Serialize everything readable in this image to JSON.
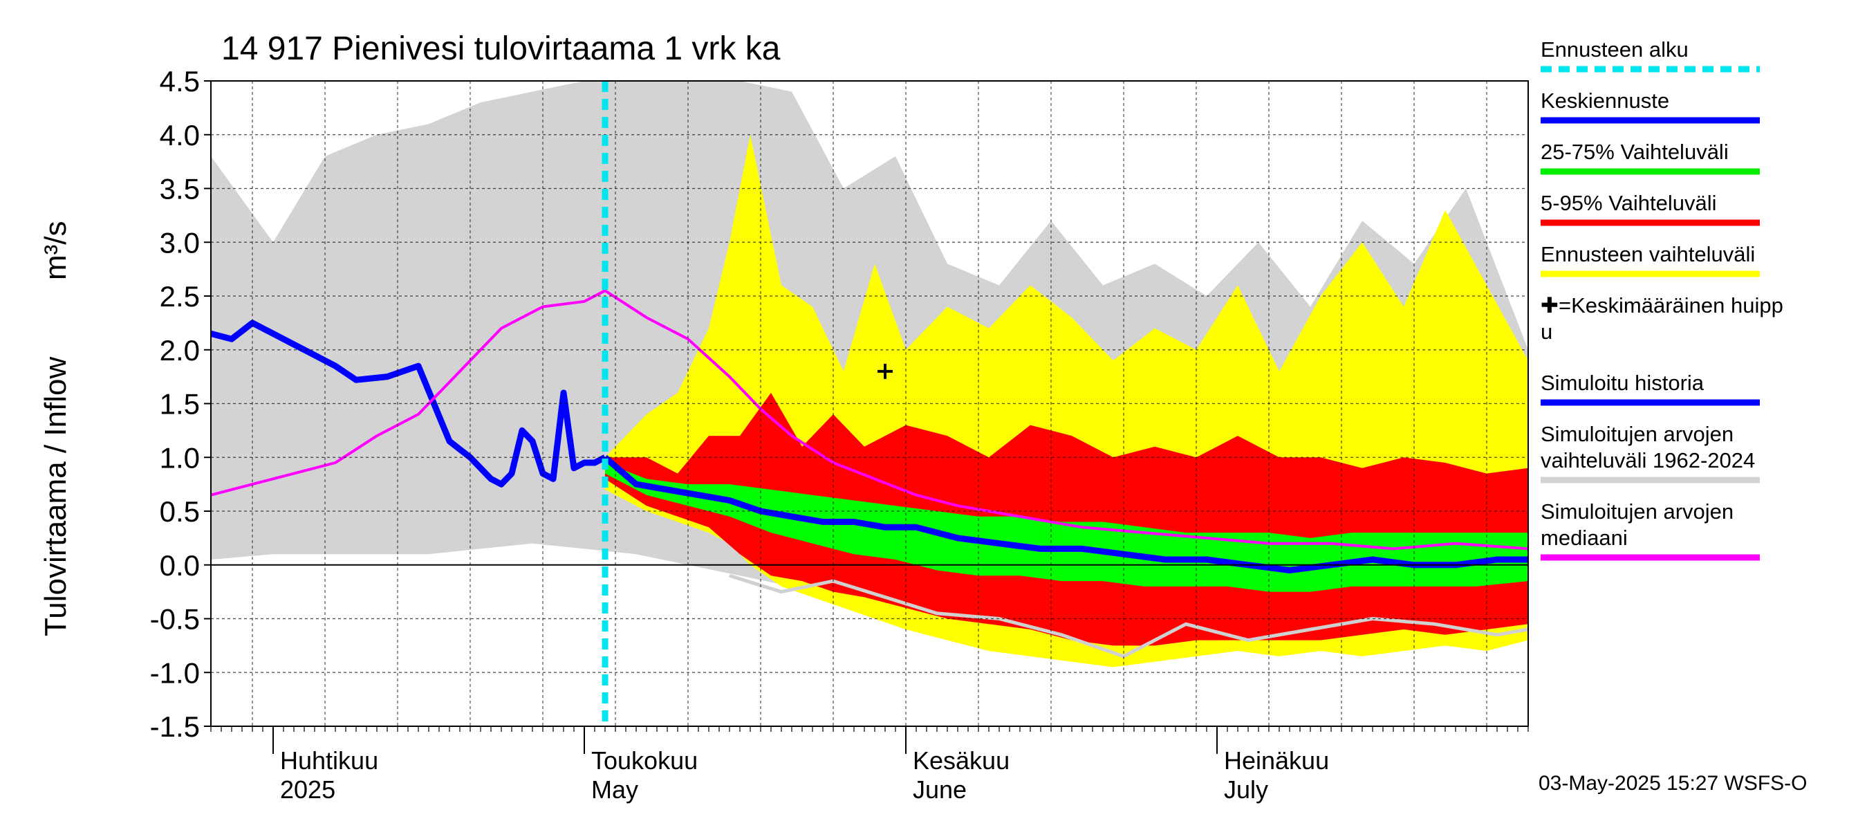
{
  "chart_data": {
    "type": "area",
    "title": "14 917 Pienivesi tulovirtaama 1 vrk ka",
    "ylabel": "Tulovirtaama / Inflow",
    "yunit": "m³/s",
    "ylim": [
      -1.5,
      4.5
    ],
    "yticks": [
      "4.5",
      "4.0",
      "3.5",
      "3.0",
      "2.5",
      "2.0",
      "1.5",
      "1.0",
      "0.5",
      "0.0",
      "-0.5",
      "-1.0",
      "-1.5"
    ],
    "xlim": [
      "2025-03-26",
      "2025-07-31"
    ],
    "grid": true,
    "forecast_start": "2025-05-03",
    "months": [
      {
        "fi": "Huhtikuu",
        "en": "2025",
        "date": "2025-04-01"
      },
      {
        "fi": "Toukokuu",
        "en": "May",
        "date": "2025-05-01"
      },
      {
        "fi": "Kesäkuu",
        "en": "June",
        "date": "2025-06-01"
      },
      {
        "fi": "Heinäkuu",
        "en": "July",
        "date": "2025-07-01"
      }
    ],
    "peak_marker": {
      "date": "2025-05-30",
      "value": 1.8
    },
    "series": [
      {
        "name": "Simuloitu historia",
        "color": "#0000ff",
        "x": [
          "2025-03-26",
          "2025-03-28",
          "2025-03-30",
          "2025-04-01",
          "2025-04-03",
          "2025-04-05",
          "2025-04-07",
          "2025-04-09",
          "2025-04-12",
          "2025-04-15",
          "2025-04-18",
          "2025-04-20",
          "2025-04-22",
          "2025-04-23",
          "2025-04-24",
          "2025-04-25",
          "2025-04-26",
          "2025-04-27",
          "2025-04-28",
          "2025-04-29",
          "2025-04-30",
          "2025-05-01",
          "2025-05-02",
          "2025-05-03"
        ],
        "y": [
          2.15,
          2.1,
          2.25,
          2.15,
          2.05,
          1.95,
          1.85,
          1.72,
          1.75,
          1.85,
          1.15,
          1.0,
          0.8,
          0.75,
          0.85,
          1.25,
          1.15,
          0.85,
          0.8,
          1.6,
          0.9,
          0.95,
          0.95,
          1.0
        ]
      },
      {
        "name": "Simuloitujen arvojen mediaani",
        "color": "#ff00ff",
        "x": [
          "2025-03-26",
          "2025-03-30",
          "2025-04-03",
          "2025-04-07",
          "2025-04-11",
          "2025-04-15",
          "2025-04-19",
          "2025-04-23",
          "2025-04-27",
          "2025-05-01",
          "2025-05-03",
          "2025-05-07",
          "2025-05-11",
          "2025-05-15",
          "2025-05-18",
          "2025-05-21",
          "2025-05-25",
          "2025-05-29",
          "2025-06-02",
          "2025-06-06",
          "2025-06-12",
          "2025-06-18",
          "2025-06-24",
          "2025-06-30",
          "2025-07-06",
          "2025-07-12",
          "2025-07-18",
          "2025-07-24",
          "2025-07-31"
        ],
        "y": [
          0.65,
          0.75,
          0.85,
          0.95,
          1.2,
          1.4,
          1.8,
          2.2,
          2.4,
          2.45,
          2.55,
          2.3,
          2.1,
          1.75,
          1.45,
          1.2,
          0.95,
          0.8,
          0.65,
          0.55,
          0.45,
          0.35,
          0.3,
          0.25,
          0.2,
          0.2,
          0.15,
          0.2,
          0.15
        ]
      },
      {
        "name": "Keskiennuste",
        "color": "#0000ff",
        "x": [
          "2025-05-03",
          "2025-05-06",
          "2025-05-09",
          "2025-05-12",
          "2025-05-15",
          "2025-05-18",
          "2025-05-21",
          "2025-05-24",
          "2025-05-27",
          "2025-05-30",
          "2025-06-02",
          "2025-06-06",
          "2025-06-10",
          "2025-06-14",
          "2025-06-18",
          "2025-06-22",
          "2025-06-26",
          "2025-06-30",
          "2025-07-04",
          "2025-07-08",
          "2025-07-12",
          "2025-07-16",
          "2025-07-20",
          "2025-07-24",
          "2025-07-28",
          "2025-07-31"
        ],
        "y": [
          1.0,
          0.75,
          0.7,
          0.65,
          0.6,
          0.5,
          0.45,
          0.4,
          0.4,
          0.35,
          0.35,
          0.25,
          0.2,
          0.15,
          0.15,
          0.1,
          0.05,
          0.05,
          0.0,
          -0.05,
          0.0,
          0.05,
          0.0,
          0.0,
          0.05,
          0.05
        ]
      },
      {
        "name": "Simuloitujen arvojen vaihteluväli 1962-2024 (alaraja)",
        "color": "#d0d0d0",
        "x": [
          "2025-05-15",
          "2025-05-20",
          "2025-05-25",
          "2025-05-30",
          "2025-06-04",
          "2025-06-10",
          "2025-06-16",
          "2025-06-22",
          "2025-06-28",
          "2025-07-04",
          "2025-07-10",
          "2025-07-16",
          "2025-07-22",
          "2025-07-28",
          "2025-07-31"
        ],
        "y": [
          -0.1,
          -0.25,
          -0.15,
          -0.3,
          -0.45,
          -0.5,
          -0.65,
          -0.85,
          -0.55,
          -0.7,
          -0.6,
          -0.5,
          -0.55,
          -0.65,
          -0.6
        ]
      }
    ],
    "bands": [
      {
        "name": "Simuloitujen arvojen vaihteluväli 1962-2024",
        "color": "#d3d3d3",
        "x": [
          "2025-03-26",
          "2025-04-01",
          "2025-04-06",
          "2025-04-11",
          "2025-04-16",
          "2025-04-21",
          "2025-04-26",
          "2025-05-01",
          "2025-05-06",
          "2025-05-11",
          "2025-05-16",
          "2025-05-21",
          "2025-05-26",
          "2025-05-31",
          "2025-06-05",
          "2025-06-10",
          "2025-06-15",
          "2025-06-20",
          "2025-06-25",
          "2025-06-30",
          "2025-07-05",
          "2025-07-10",
          "2025-07-15",
          "2025-07-20",
          "2025-07-25",
          "2025-07-31"
        ],
        "lo": [
          0.05,
          0.1,
          0.1,
          0.1,
          0.1,
          0.15,
          0.2,
          0.15,
          0.1,
          0.0,
          -0.1,
          -0.2,
          -0.3,
          -0.35,
          -0.5,
          -0.55,
          -0.6,
          -0.8,
          -0.7,
          -0.75,
          -0.7,
          -0.7,
          -0.65,
          -0.7,
          -0.75,
          -0.7
        ],
        "hi": [
          3.8,
          3.0,
          3.8,
          4.0,
          4.1,
          4.3,
          4.4,
          4.5,
          4.5,
          4.5,
          4.5,
          4.4,
          3.5,
          3.8,
          2.8,
          2.6,
          3.2,
          2.6,
          2.8,
          2.5,
          3.0,
          2.4,
          3.2,
          2.8,
          3.5,
          2.0
        ]
      },
      {
        "name": "Ennusteen vaihteluväli",
        "color": "#ffff00",
        "x": [
          "2025-05-03",
          "2025-05-07",
          "2025-05-10",
          "2025-05-13",
          "2025-05-15",
          "2025-05-17",
          "2025-05-20",
          "2025-05-23",
          "2025-05-26",
          "2025-05-29",
          "2025-06-01",
          "2025-06-05",
          "2025-06-09",
          "2025-06-13",
          "2025-06-17",
          "2025-06-21",
          "2025-06-25",
          "2025-06-29",
          "2025-07-03",
          "2025-07-07",
          "2025-07-11",
          "2025-07-15",
          "2025-07-19",
          "2025-07-23",
          "2025-07-27",
          "2025-07-31"
        ],
        "lo": [
          0.7,
          0.5,
          0.4,
          0.3,
          0.2,
          0.0,
          -0.2,
          -0.3,
          -0.4,
          -0.5,
          -0.6,
          -0.7,
          -0.8,
          -0.85,
          -0.9,
          -0.95,
          -0.9,
          -0.85,
          -0.8,
          -0.85,
          -0.8,
          -0.85,
          -0.8,
          -0.75,
          -0.8,
          -0.7
        ],
        "hi": [
          1.0,
          1.4,
          1.6,
          2.2,
          3.0,
          4.0,
          2.6,
          2.4,
          1.8,
          2.8,
          2.0,
          2.4,
          2.2,
          2.6,
          2.3,
          1.9,
          2.2,
          2.0,
          2.6,
          1.8,
          2.5,
          3.0,
          2.4,
          3.3,
          2.6,
          1.9
        ]
      },
      {
        "name": "5-95% Vaihteluväli",
        "color": "#ff0000",
        "x": [
          "2025-05-03",
          "2025-05-07",
          "2025-05-10",
          "2025-05-13",
          "2025-05-16",
          "2025-05-19",
          "2025-05-22",
          "2025-05-25",
          "2025-05-28",
          "2025-06-01",
          "2025-06-05",
          "2025-06-09",
          "2025-06-13",
          "2025-06-17",
          "2025-06-21",
          "2025-06-25",
          "2025-06-29",
          "2025-07-03",
          "2025-07-07",
          "2025-07-11",
          "2025-07-15",
          "2025-07-19",
          "2025-07-23",
          "2025-07-27",
          "2025-07-31"
        ],
        "lo": [
          0.8,
          0.55,
          0.45,
          0.35,
          0.1,
          -0.1,
          -0.15,
          -0.25,
          -0.3,
          -0.4,
          -0.5,
          -0.55,
          -0.6,
          -0.7,
          -0.75,
          -0.75,
          -0.7,
          -0.7,
          -0.7,
          -0.7,
          -0.65,
          -0.6,
          -0.65,
          -0.6,
          -0.55
        ],
        "hi": [
          1.0,
          1.0,
          0.85,
          1.2,
          1.2,
          1.6,
          1.1,
          1.4,
          1.1,
          1.3,
          1.2,
          1.0,
          1.3,
          1.2,
          1.0,
          1.1,
          1.0,
          1.2,
          1.0,
          1.0,
          0.9,
          1.0,
          0.95,
          0.85,
          0.9
        ]
      },
      {
        "name": "25-75% Vaihteluväli",
        "color": "#00ff00",
        "x": [
          "2025-05-03",
          "2025-05-07",
          "2025-05-11",
          "2025-05-15",
          "2025-05-19",
          "2025-05-23",
          "2025-05-27",
          "2025-05-31",
          "2025-06-04",
          "2025-06-08",
          "2025-06-12",
          "2025-06-16",
          "2025-06-20",
          "2025-06-24",
          "2025-06-28",
          "2025-07-02",
          "2025-07-06",
          "2025-07-10",
          "2025-07-14",
          "2025-07-18",
          "2025-07-22",
          "2025-07-26",
          "2025-07-31"
        ],
        "lo": [
          0.85,
          0.65,
          0.55,
          0.45,
          0.3,
          0.2,
          0.1,
          0.05,
          -0.05,
          -0.1,
          -0.1,
          -0.15,
          -0.15,
          -0.2,
          -0.2,
          -0.2,
          -0.25,
          -0.25,
          -0.2,
          -0.2,
          -0.2,
          -0.2,
          -0.15
        ],
        "hi": [
          0.95,
          0.8,
          0.75,
          0.75,
          0.7,
          0.65,
          0.6,
          0.55,
          0.5,
          0.45,
          0.45,
          0.4,
          0.4,
          0.35,
          0.3,
          0.3,
          0.3,
          0.25,
          0.3,
          0.3,
          0.3,
          0.3,
          0.3
        ]
      }
    ]
  },
  "legend": [
    {
      "label": "Ennusteen alku",
      "color": "#00e5ee",
      "style": "dashed"
    },
    {
      "label": "Keskiennuste",
      "color": "#0000ff",
      "style": "solid"
    },
    {
      "label": "25-75% Vaihteluväli",
      "color": "#00ee00",
      "style": "solid"
    },
    {
      "label": "5-95% Vaihteluväli",
      "color": "#ff0000",
      "style": "solid"
    },
    {
      "label": "Ennusteen vaihteluväli",
      "color": "#ffff00",
      "style": "solid"
    },
    {
      "label": "✚=Keskimääräinen huipp",
      "label2": "u",
      "color": "",
      "style": "none"
    },
    {
      "label": "Simuloitu historia",
      "color": "#0000ff",
      "style": "solid"
    },
    {
      "label": "Simuloitujen arvojen",
      "label2": "vaihteluväli 1962-2024",
      "color": "#d3d3d3",
      "style": "solid"
    },
    {
      "label": "Simuloitujen arvojen",
      "label2": "mediaani",
      "color": "#ff00ff",
      "style": "solid"
    }
  ],
  "footer": "03-May-2025 15:27 WSFS-O"
}
